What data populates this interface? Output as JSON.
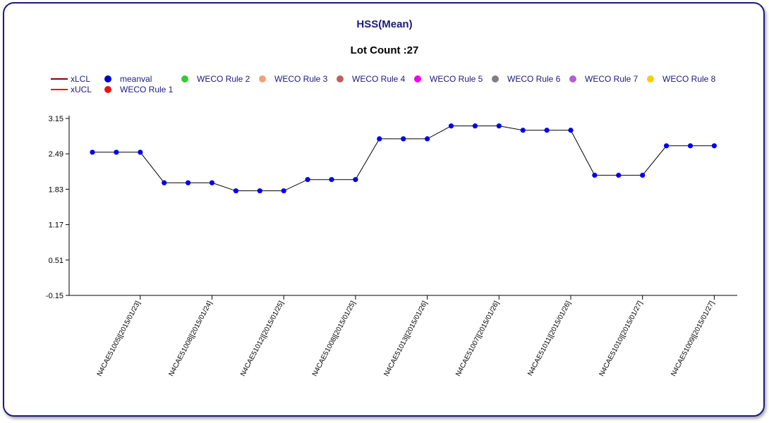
{
  "chart_data": {
    "type": "line",
    "title": "HSS(Mean)",
    "subtitle": "Lot Count :27",
    "yticks": [
      "3.15",
      "2.49",
      "1.83",
      "1.17",
      "0.51",
      "-0.15"
    ],
    "ylim": [
      -0.15,
      3.15
    ],
    "xtick_labels": [
      "N4CAE51005|[2015/01/23]",
      "N4CAE51008|[2015/01/24]",
      "N4CAE51012|[2015/01/25]",
      "N4CAE51008|[2015/01/25]",
      "N4CAE51013|[2015/01/26]",
      "N4CAE51007|[2015/01/26]",
      "N4CAE51011|[2015/01/26]",
      "N4CAE51010|[2015/01/27]",
      "N4CAE51009|[2015/01/27]"
    ],
    "series": [
      {
        "name": "meanval",
        "color": "#0000ee",
        "values": [
          2.52,
          2.52,
          2.52,
          1.95,
          1.95,
          1.95,
          1.8,
          1.8,
          1.8,
          2.01,
          2.01,
          2.01,
          2.77,
          2.77,
          2.77,
          3.01,
          3.01,
          3.01,
          2.93,
          2.93,
          2.93,
          2.09,
          2.09,
          2.09,
          2.64,
          2.64,
          2.64
        ]
      }
    ],
    "legend": [
      {
        "label": "xLCL",
        "kind": "line",
        "color": "#8b0000"
      },
      {
        "label": "xUCL",
        "kind": "line",
        "color": "#ee1111"
      },
      {
        "label": "meanval",
        "kind": "dot",
        "color": "#0000cc"
      },
      {
        "label": "WECO Rule 1",
        "kind": "dot",
        "color": "#ee1111"
      },
      {
        "label": "WECO Rule 2",
        "kind": "dot",
        "color": "#33cc33"
      },
      {
        "label": "WECO Rule 3",
        "kind": "dot",
        "color": "#f4a07a"
      },
      {
        "label": "WECO Rule 4",
        "kind": "dot",
        "color": "#c0605a"
      },
      {
        "label": "WECO Rule 5",
        "kind": "dot",
        "color": "#ee00ee"
      },
      {
        "label": "WECO Rule 6",
        "kind": "dot",
        "color": "#808080"
      },
      {
        "label": "WECO Rule 7",
        "kind": "dot",
        "color": "#b060d0"
      },
      {
        "label": "WECO Rule 8",
        "kind": "dot",
        "color": "#ffcc00"
      }
    ],
    "legend_placement": "top-left",
    "grid": false
  }
}
